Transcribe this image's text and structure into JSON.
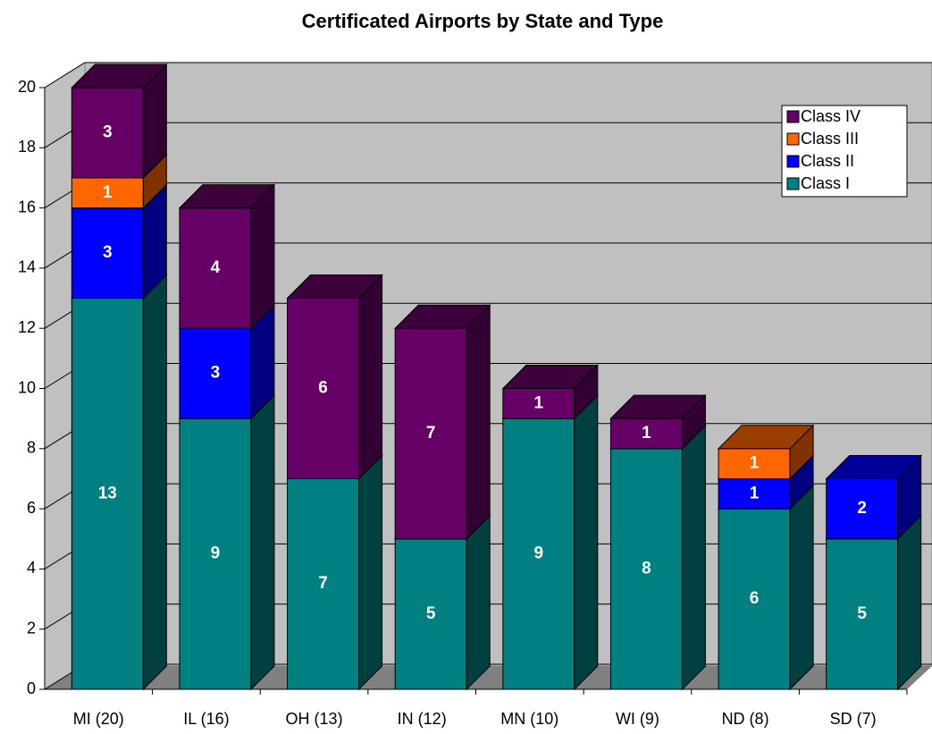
{
  "chart_data": {
    "type": "bar3d_stacked",
    "title": "Certificated Airports by State and Type",
    "categories": [
      "MI (20)",
      "IL (16)",
      "OH (13)",
      "IN (12)",
      "MN (10)",
      "WI (9)",
      "ND (8)",
      "SD (7)"
    ],
    "series": [
      {
        "name": "Class I",
        "color": "#008080",
        "values": [
          13,
          9,
          7,
          5,
          9,
          8,
          6,
          5
        ]
      },
      {
        "name": "Class II",
        "color": "#0000ff",
        "values": [
          3,
          3,
          0,
          0,
          0,
          0,
          1,
          2
        ]
      },
      {
        "name": "Class III",
        "color": "#ff6600",
        "values": [
          1,
          0,
          0,
          0,
          0,
          0,
          1,
          0
        ]
      },
      {
        "name": "Class IV",
        "color": "#660066",
        "values": [
          3,
          4,
          6,
          7,
          1,
          1,
          0,
          0
        ]
      }
    ],
    "ylim": [
      0,
      20
    ],
    "yticks": [
      0,
      2,
      4,
      6,
      8,
      10,
      12,
      14,
      16,
      18,
      20
    ],
    "grid": true,
    "legend": "upper right"
  }
}
